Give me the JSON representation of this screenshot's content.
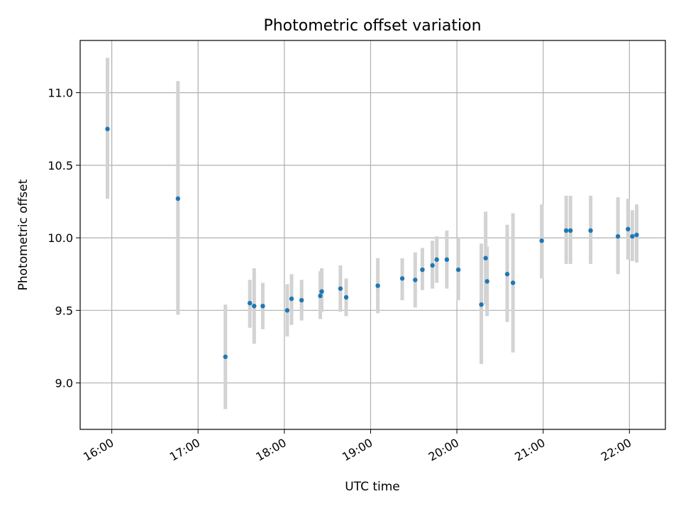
{
  "chart_data": {
    "type": "scatter",
    "title": "Photometric offset variation",
    "xlabel": "UTC time",
    "ylabel": "Photometric offset",
    "x_format": "HH:MM",
    "xlim": [
      "15:38",
      "22:25"
    ],
    "ylim": [
      8.68,
      11.36
    ],
    "x_ticks": [
      "16:00",
      "17:00",
      "18:00",
      "19:00",
      "20:00",
      "21:00",
      "22:00"
    ],
    "y_ticks": [
      "9.0",
      "9.5",
      "10.0",
      "10.5",
      "11.0"
    ],
    "grid": true,
    "legend": false,
    "colors": {
      "marker": "#1f77b4",
      "error_bar": "#d3d3d3",
      "grid": "#b0b0b0"
    },
    "series": [
      {
        "points": [
          {
            "x": "15:57",
            "y": 10.75,
            "ylo": 10.27,
            "yhi": 11.24
          },
          {
            "x": "16:46",
            "y": 10.27,
            "ylo": 9.47,
            "yhi": 11.08
          },
          {
            "x": "17:19",
            "y": 9.18,
            "ylo": 8.82,
            "yhi": 9.54
          },
          {
            "x": "17:36",
            "y": 9.55,
            "ylo": 9.38,
            "yhi": 9.71
          },
          {
            "x": "17:39",
            "y": 9.53,
            "ylo": 9.27,
            "yhi": 9.79
          },
          {
            "x": "17:45",
            "y": 9.53,
            "ylo": 9.37,
            "yhi": 9.69
          },
          {
            "x": "18:02",
            "y": 9.5,
            "ylo": 9.32,
            "yhi": 9.68
          },
          {
            "x": "18:05",
            "y": 9.58,
            "ylo": 9.4,
            "yhi": 9.75
          },
          {
            "x": "18:12",
            "y": 9.57,
            "ylo": 9.43,
            "yhi": 9.71
          },
          {
            "x": "18:25",
            "y": 9.6,
            "ylo": 9.44,
            "yhi": 9.77
          },
          {
            "x": "18:26",
            "y": 9.63,
            "ylo": 9.49,
            "yhi": 9.79
          },
          {
            "x": "18:39",
            "y": 9.65,
            "ylo": 9.49,
            "yhi": 9.81
          },
          {
            "x": "18:43",
            "y": 9.59,
            "ylo": 9.46,
            "yhi": 9.72
          },
          {
            "x": "19:05",
            "y": 9.67,
            "ylo": 9.48,
            "yhi": 9.86
          },
          {
            "x": "19:22",
            "y": 9.72,
            "ylo": 9.57,
            "yhi": 9.86
          },
          {
            "x": "19:31",
            "y": 9.71,
            "ylo": 9.52,
            "yhi": 9.9
          },
          {
            "x": "19:36",
            "y": 9.78,
            "ylo": 9.64,
            "yhi": 9.93
          },
          {
            "x": "19:43",
            "y": 9.81,
            "ylo": 9.65,
            "yhi": 9.98
          },
          {
            "x": "19:46",
            "y": 9.85,
            "ylo": 9.69,
            "yhi": 10.01
          },
          {
            "x": "19:53",
            "y": 9.85,
            "ylo": 9.65,
            "yhi": 10.05
          },
          {
            "x": "20:01",
            "y": 9.78,
            "ylo": 9.57,
            "yhi": 10.0
          },
          {
            "x": "20:17",
            "y": 9.54,
            "ylo": 9.13,
            "yhi": 9.96
          },
          {
            "x": "20:20",
            "y": 9.86,
            "ylo": 9.54,
            "yhi": 10.18
          },
          {
            "x": "20:21",
            "y": 9.7,
            "ylo": 9.46,
            "yhi": 9.94
          },
          {
            "x": "20:35",
            "y": 9.75,
            "ylo": 9.42,
            "yhi": 10.09
          },
          {
            "x": "20:39",
            "y": 9.69,
            "ylo": 9.21,
            "yhi": 10.17
          },
          {
            "x": "20:59",
            "y": 9.98,
            "ylo": 9.72,
            "yhi": 10.23
          },
          {
            "x": "21:16",
            "y": 10.05,
            "ylo": 9.82,
            "yhi": 10.29
          },
          {
            "x": "21:19",
            "y": 10.05,
            "ylo": 9.82,
            "yhi": 10.29
          },
          {
            "x": "21:33",
            "y": 10.05,
            "ylo": 9.82,
            "yhi": 10.29
          },
          {
            "x": "21:52",
            "y": 10.01,
            "ylo": 9.75,
            "yhi": 10.28
          },
          {
            "x": "21:59",
            "y": 10.06,
            "ylo": 9.85,
            "yhi": 10.27
          },
          {
            "x": "22:02",
            "y": 10.01,
            "ylo": 9.84,
            "yhi": 10.19
          },
          {
            "x": "22:05",
            "y": 10.02,
            "ylo": 9.83,
            "yhi": 10.23
          }
        ]
      }
    ]
  }
}
